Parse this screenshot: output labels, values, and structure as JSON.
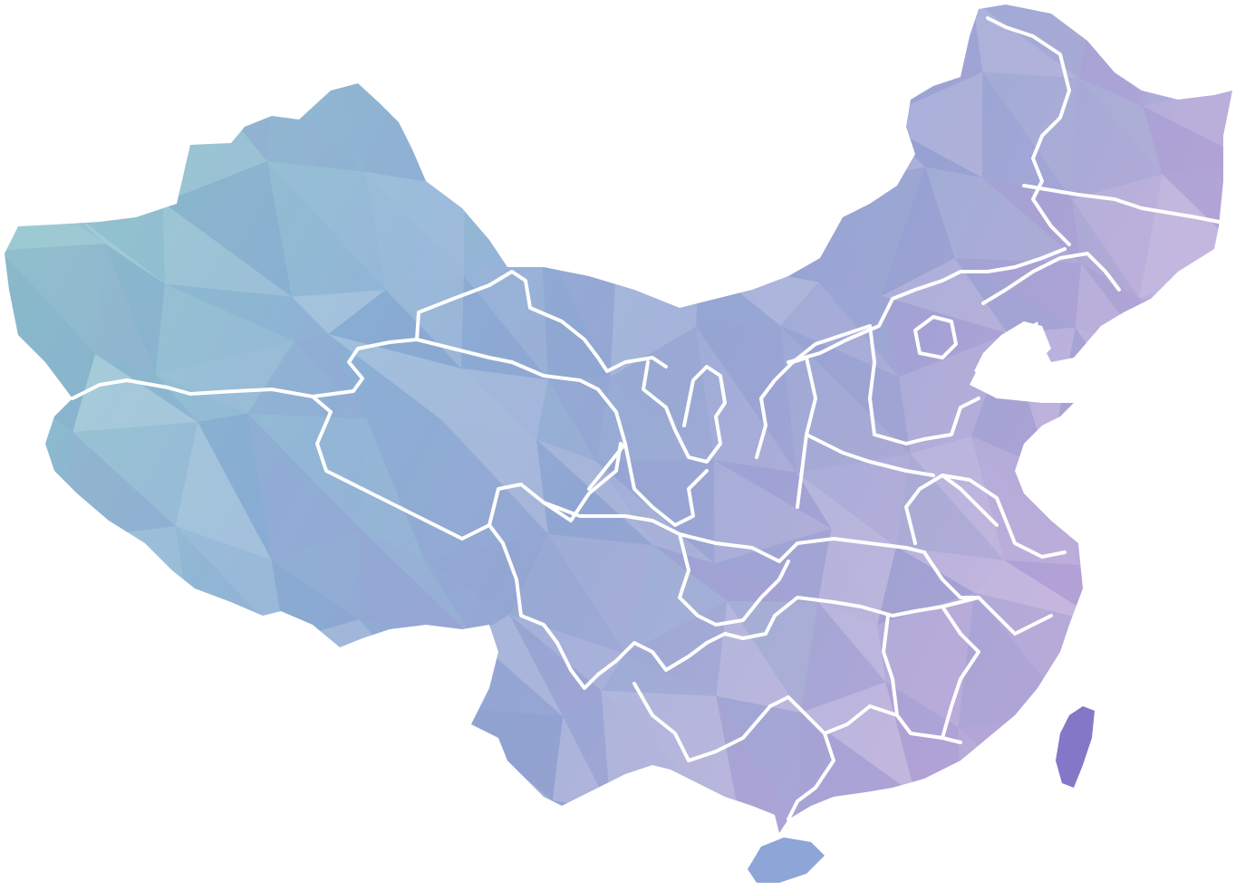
{
  "map": {
    "subject": "china-provinces",
    "style": "low-poly watercolor",
    "colors": {
      "background": "#ffffff",
      "border": "#ffffff",
      "west": "#8fc9c8",
      "center": "#8fb3d6",
      "north": "#98a7d4",
      "east": "#b9a6d8",
      "northeast": "#c4a7db",
      "south": "#8a9fd8",
      "taiwan": "#8577c8",
      "hainan": "#8ea5d8"
    }
  }
}
